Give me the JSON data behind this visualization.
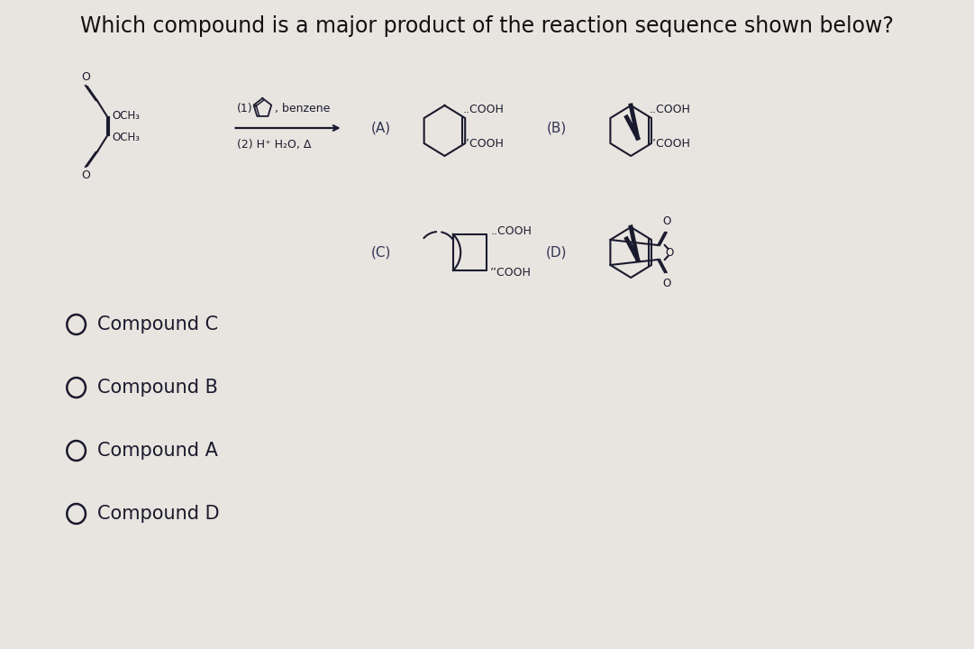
{
  "title": "Which compound is a major product of the reaction sequence shown below?",
  "title_fontsize": 17,
  "bg_color": "#e8e5e0",
  "text_color": "#1a1a2e",
  "choices": [
    "Compound C",
    "Compound B",
    "Compound A",
    "Compound D"
  ],
  "reagent_label1": "(1)",
  "reagent_label2": "(2) H⁺ H₂O, Δ",
  "benzene_label": ", benzene"
}
